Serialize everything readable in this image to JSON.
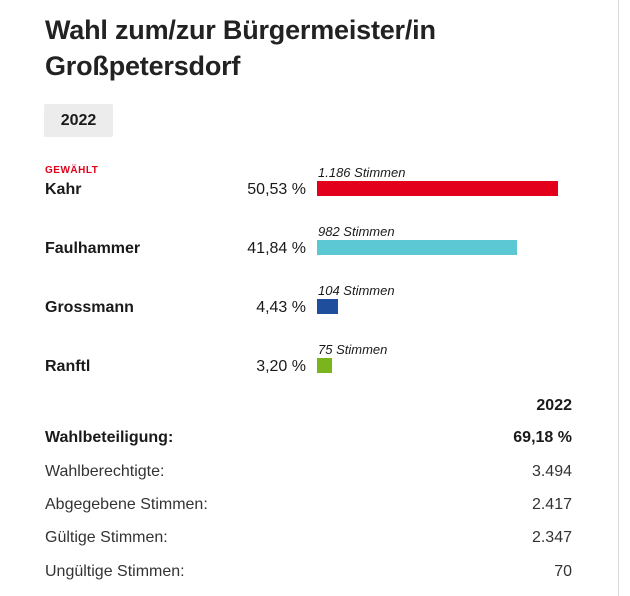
{
  "title": "Wahl zum/zur Bürgermeister/in Großpetersdorf",
  "year_tab": "2022",
  "elected_label": "GEWÄHLT",
  "chart_data": {
    "type": "bar",
    "title": "Wahl zum/zur Bürgermeister/in Großpetersdorf",
    "categories": [
      "Kahr",
      "Faulhammer",
      "Grossmann",
      "Ranftl"
    ],
    "values": [
      50.53,
      41.84,
      4.43,
      3.2
    ],
    "percent_labels": [
      "50,53 %",
      "41,84 %",
      "4,43 %",
      "3,20 %"
    ],
    "vote_labels": [
      "1.186 Stimmen",
      "982 Stimmen",
      "104 Stimmen",
      "75 Stimmen"
    ],
    "votes": [
      1186,
      982,
      104,
      75
    ],
    "colors": [
      "#e2001a",
      "#5bc8d3",
      "#1f4e9c",
      "#7ab51d"
    ],
    "elected": [
      true,
      false,
      false,
      false
    ],
    "orientation": "horizontal"
  },
  "stats": {
    "header": "2022",
    "rows": [
      {
        "label": "Wahlbeteiligung:",
        "value": "69,18 %",
        "bold": true
      },
      {
        "label": "Wahlberechtigte:",
        "value": "3.494",
        "bold": false
      },
      {
        "label": "Abgegebene Stimmen:",
        "value": "2.417",
        "bold": false
      },
      {
        "label": "Gültige Stimmen:",
        "value": "2.347",
        "bold": false
      },
      {
        "label": "Ungültige Stimmen:",
        "value": "70",
        "bold": false
      }
    ]
  }
}
